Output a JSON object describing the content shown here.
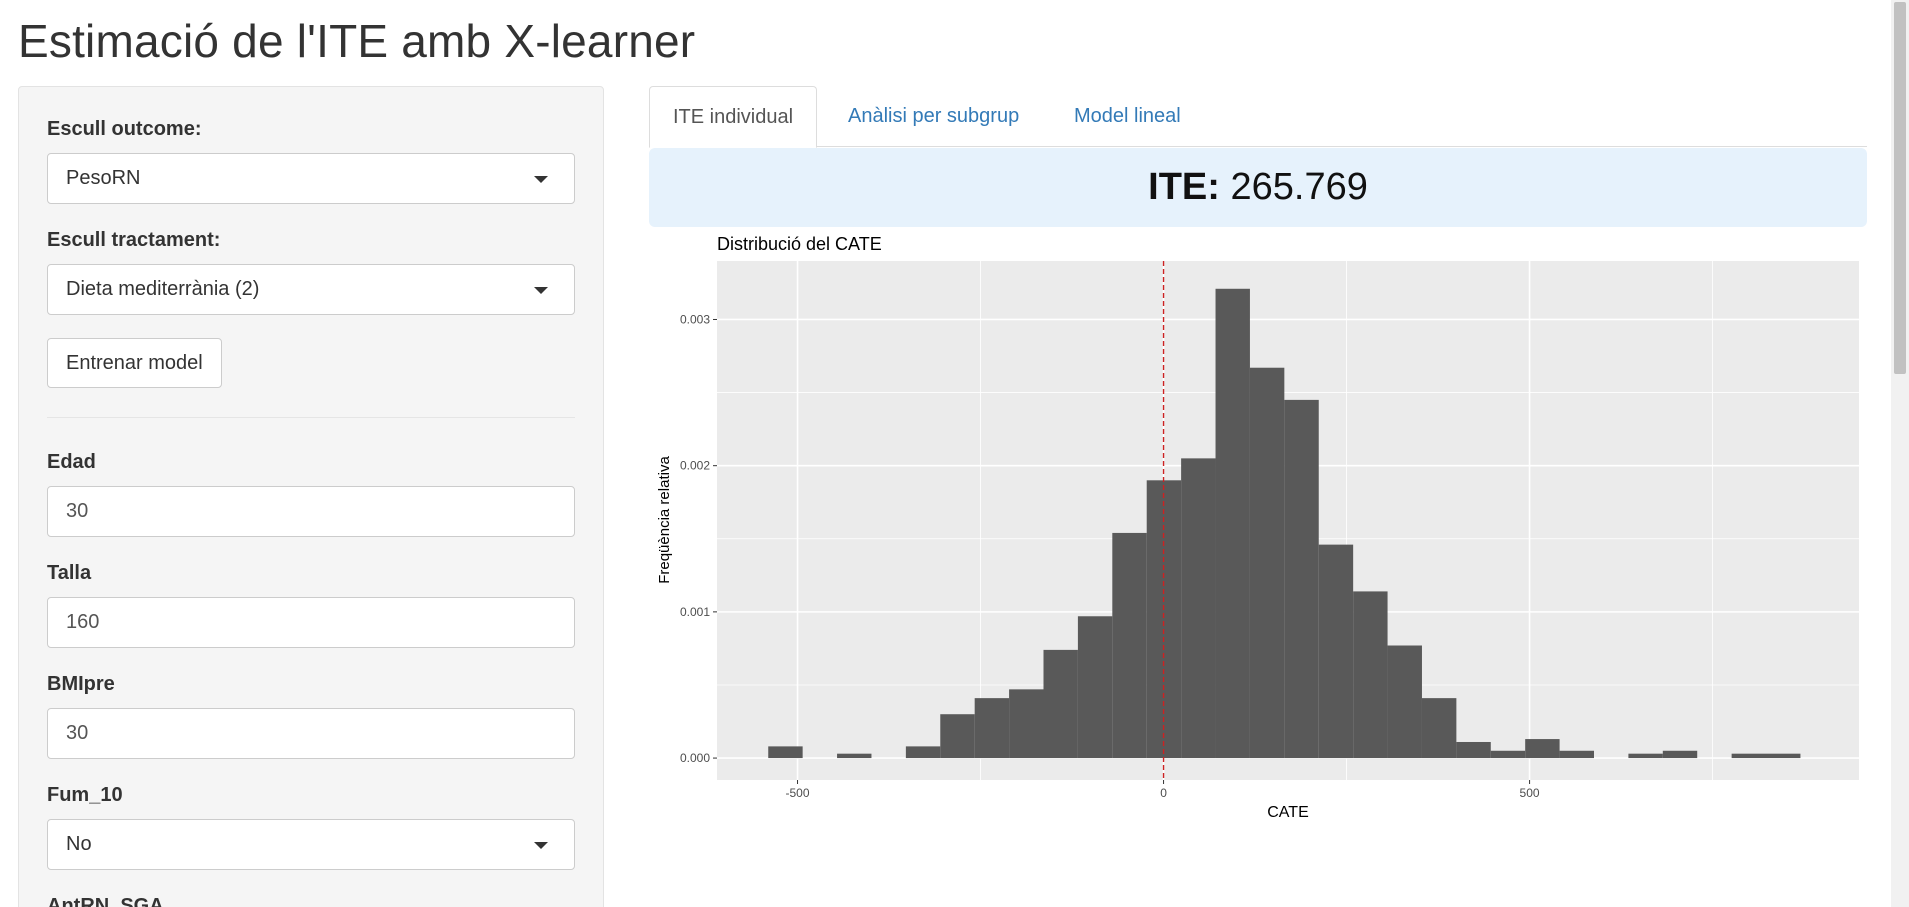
{
  "page": {
    "title": "Estimació de l'ITE amb X-learner"
  },
  "sidebar": {
    "outcome_label": "Escull outcome:",
    "outcome_value": "PesoRN",
    "treatment_label": "Escull tractament:",
    "treatment_value": "Dieta mediterrània (2)",
    "train_button": "Entrenar model",
    "fields": {
      "edad_label": "Edad",
      "edad_value": "30",
      "talla_label": "Talla",
      "talla_value": "160",
      "bmi_label": "BMIpre",
      "bmi_value": "30",
      "fum_label": "Fum_10",
      "fum_value": "No",
      "antrn_label": "AntRN_SGA"
    }
  },
  "tabs": [
    "ITE individual",
    "Anàlisi per subgrup",
    "Model lineal"
  ],
  "ite": {
    "key": "ITE:",
    "value": "265.769"
  },
  "chart_data": {
    "type": "bar",
    "title": "Distribució del CATE",
    "xlabel": "CATE",
    "ylabel": "Freqüència relativa",
    "xlim": [
      -610,
      950
    ],
    "ylim": [
      -0.00015,
      0.0034
    ],
    "x_ticks": [
      -500,
      0,
      500
    ],
    "x_tick_labels": [
      "-500",
      "0",
      "500"
    ],
    "y_ticks": [
      0,
      0.001,
      0.002,
      0.003
    ],
    "y_tick_labels": [
      "0.000",
      "0.001",
      "0.002",
      "0.003"
    ],
    "bin_width": 47,
    "bins_start": [
      -540,
      -446,
      -352,
      -305,
      -258,
      -211,
      -164,
      -117,
      -70,
      -23,
      24,
      71,
      118,
      165,
      212,
      259,
      306,
      353,
      400,
      447,
      494,
      541,
      635,
      682,
      776
    ],
    "bins_span": [
      1,
      1,
      1,
      1,
      1,
      1,
      1,
      1,
      1,
      1,
      1,
      1,
      1,
      1,
      1,
      1,
      1,
      1,
      1,
      1,
      1,
      1,
      1,
      1,
      2
    ],
    "values": [
      8e-05,
      3e-05,
      8e-05,
      0.0003,
      0.00041,
      0.00047,
      0.00074,
      0.00097,
      0.00154,
      0.0019,
      0.00205,
      0.00321,
      0.00267,
      0.00245,
      0.00146,
      0.00114,
      0.00077,
      0.00041,
      0.00011,
      5e-05,
      0.00013,
      5e-05,
      3e-05,
      5e-05,
      3e-05
    ],
    "reference_line_x": 0,
    "grid": true,
    "colors": {
      "bar": "#595959",
      "panel": "#ebebeb",
      "grid": "#ffffff",
      "refline": "#cc2222"
    }
  }
}
